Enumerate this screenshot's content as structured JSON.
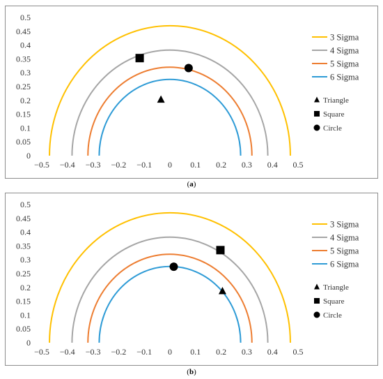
{
  "chart_data": [
    {
      "type": "scatter",
      "panel_label": "a",
      "x_ticks": [
        "−0.5",
        "−0.4",
        "−0.3",
        "−0.2",
        "−0.1",
        "0",
        "0.1",
        "0.2",
        "0.3",
        "0.4",
        "0.5"
      ],
      "y_ticks": [
        "0",
        "0.05",
        "0.1",
        "0.15",
        "0.2",
        "0.25",
        "0.3",
        "0.35",
        "0.4",
        "0.45",
        "0.5"
      ],
      "xlim": [
        -0.5,
        0.5
      ],
      "ylim": [
        0,
        0.5
      ],
      "grid": false,
      "legend_position": "right",
      "curves": [
        {
          "name": "3 Sigma",
          "radius": 0.47,
          "color": "#FFC000"
        },
        {
          "name": "4 Sigma",
          "radius": 0.382,
          "color": "#A5A5A5"
        },
        {
          "name": "5 Sigma",
          "radius": 0.32,
          "color": "#ED7D31"
        },
        {
          "name": "6 Sigma",
          "radius": 0.276,
          "color": "#2E9BD6"
        }
      ],
      "points": [
        {
          "name": "Triangle",
          "marker": "triangle",
          "x": -0.035,
          "y": 0.203
        },
        {
          "name": "Square",
          "marker": "square",
          "x": -0.118,
          "y": 0.353
        },
        {
          "name": "Circle",
          "marker": "circle",
          "x": 0.073,
          "y": 0.317
        }
      ]
    },
    {
      "type": "scatter",
      "panel_label": "b",
      "x_ticks": [
        "−0.5",
        "−0.4",
        "−0.3",
        "−0.2",
        "−0.1",
        "0",
        "0.1",
        "0.2",
        "0.3",
        "0.4",
        "0.5"
      ],
      "y_ticks": [
        "0",
        "0.05",
        "0.1",
        "0.15",
        "0.2",
        "0.25",
        "0.3",
        "0.35",
        "0.4",
        "0.45",
        "0.5"
      ],
      "xlim": [
        -0.5,
        0.5
      ],
      "ylim": [
        0,
        0.5
      ],
      "grid": false,
      "legend_position": "right",
      "curves": [
        {
          "name": "3 Sigma",
          "radius": 0.47,
          "color": "#FFC000"
        },
        {
          "name": "4 Sigma",
          "radius": 0.382,
          "color": "#A5A5A5"
        },
        {
          "name": "5 Sigma",
          "radius": 0.32,
          "color": "#ED7D31"
        },
        {
          "name": "6 Sigma",
          "radius": 0.276,
          "color": "#2E9BD6"
        }
      ],
      "points": [
        {
          "name": "Triangle",
          "marker": "triangle",
          "x": 0.205,
          "y": 0.187
        },
        {
          "name": "Square",
          "marker": "square",
          "x": 0.197,
          "y": 0.335
        },
        {
          "name": "Circle",
          "marker": "circle",
          "x": 0.015,
          "y": 0.275
        }
      ]
    }
  ],
  "captions": {
    "a": "a",
    "b": "b"
  }
}
